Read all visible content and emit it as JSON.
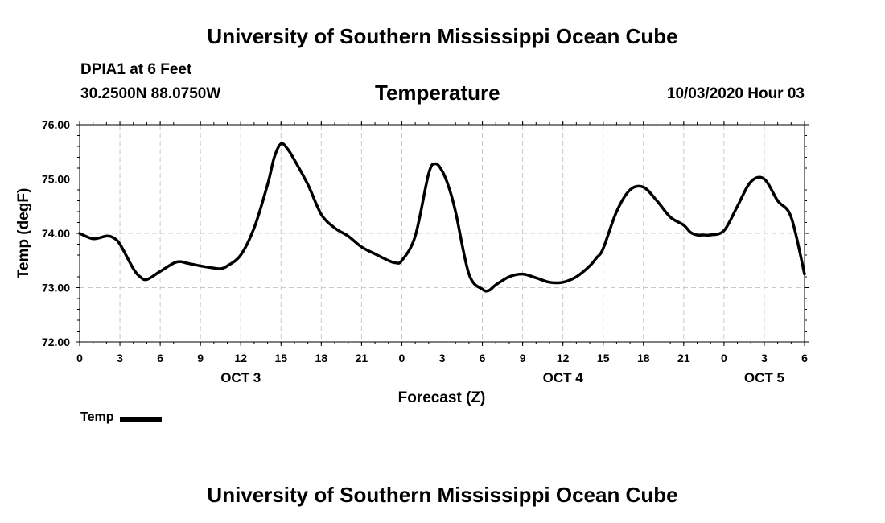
{
  "page": {
    "title": "University of Southern Mississippi Ocean Cube",
    "footer_title": "University of Southern Mississippi Ocean Cube",
    "station": "DPIA1 at 6 Feet",
    "coords": "30.2500N 88.0750W",
    "timestamp": "10/03/2020 Hour 03"
  },
  "chart_data": {
    "type": "line",
    "title": "Temperature",
    "xlabel": "Forecast (Z)",
    "ylabel": "Temp (degF)",
    "xlim": [
      0,
      54
    ],
    "ylim": [
      72,
      76
    ],
    "grid": true,
    "y_ticks": [
      "72.00",
      "73.00",
      "74.00",
      "75.00",
      "76.00"
    ],
    "x_ticks": [
      "0",
      "3",
      "6",
      "9",
      "12",
      "15",
      "18",
      "21",
      "0",
      "3",
      "6",
      "9",
      "12",
      "15",
      "18",
      "21",
      "0",
      "3",
      "6"
    ],
    "day_labels": [
      {
        "label": "OCT 3",
        "hour": 12
      },
      {
        "label": "OCT 4",
        "hour": 36
      },
      {
        "label": "OCT 5",
        "hour": 51
      }
    ],
    "legend_position": "bottom-left",
    "line_color": "#000000",
    "series": [
      {
        "name": "Temp",
        "x": [
          0,
          1,
          2,
          2.5,
          3,
          4,
          4.5,
          5,
          6,
          7,
          7.5,
          8,
          9,
          10,
          10.5,
          11,
          12,
          13,
          14,
          14.5,
          15,
          15.5,
          16,
          17,
          18,
          19,
          20,
          21,
          22,
          23,
          23.5,
          24,
          25,
          26,
          26.5,
          27,
          27.5,
          28,
          29,
          30,
          30.5,
          31,
          32,
          33,
          34,
          35,
          36,
          37,
          38,
          38.5,
          39,
          40,
          41,
          42,
          43,
          44,
          45,
          45.5,
          46,
          46.5,
          47,
          48,
          49,
          50,
          51,
          52,
          53,
          54
        ],
        "values": [
          74.0,
          73.9,
          73.95,
          73.92,
          73.8,
          73.35,
          73.2,
          73.15,
          73.3,
          73.45,
          73.48,
          73.45,
          73.4,
          73.36,
          73.35,
          73.4,
          73.6,
          74.1,
          74.9,
          75.4,
          75.65,
          75.55,
          75.35,
          74.9,
          74.35,
          74.1,
          73.95,
          73.75,
          73.62,
          73.5,
          73.46,
          73.5,
          73.95,
          75.1,
          75.28,
          75.15,
          74.85,
          74.4,
          73.25,
          72.97,
          72.95,
          73.05,
          73.2,
          73.25,
          73.18,
          73.1,
          73.1,
          73.2,
          73.4,
          73.55,
          73.72,
          74.4,
          74.8,
          74.85,
          74.6,
          74.3,
          74.15,
          74.02,
          73.97,
          73.97,
          73.97,
          74.05,
          74.5,
          74.95,
          75.0,
          74.6,
          74.3,
          73.25
        ]
      }
    ]
  }
}
